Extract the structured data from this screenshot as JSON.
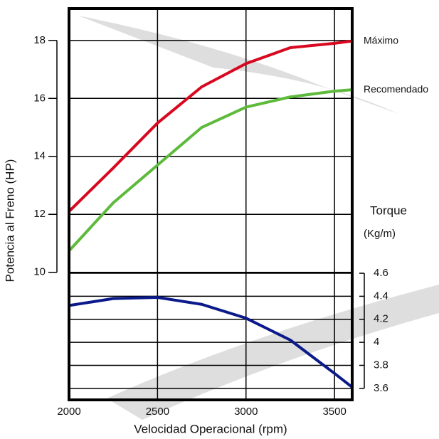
{
  "chart_data": {
    "type": "line",
    "xlabel": "Velocidad Operacional (rpm)",
    "ylabel": "Potencia al Freno (HP)",
    "y2label": "Torque",
    "y2unit": "(Kg/m)",
    "x": [
      2000,
      2250,
      2500,
      2750,
      3000,
      3250,
      3500,
      3600
    ],
    "series": [
      {
        "name": "Máximo",
        "color": "#d7081f",
        "values": [
          12.1,
          13.6,
          15.15,
          16.4,
          17.2,
          17.75,
          17.9,
          17.98
        ]
      },
      {
        "name": "Recomendado",
        "color": "#5dba3b",
        "values": [
          10.74,
          12.4,
          13.7,
          15.0,
          15.7,
          16.05,
          16.25,
          16.3
        ]
      },
      {
        "name": "Torque",
        "color": "#0b1a8a",
        "axis": "y2",
        "values": [
          4.32,
          4.38,
          4.39,
          4.33,
          4.21,
          4.02,
          3.73,
          3.61
        ]
      }
    ],
    "xlim": [
      2000,
      3600
    ],
    "xticks": [
      2000,
      2500,
      3000,
      3500
    ],
    "ylim": [
      5.6,
      19.1
    ],
    "yticks": [
      10,
      12,
      14,
      16,
      18
    ],
    "y2lim": [
      3.5,
      6.9
    ],
    "y2ticks": [
      3.6,
      3.8,
      4.0,
      4.2,
      4.4,
      4.6
    ],
    "grid": true
  }
}
